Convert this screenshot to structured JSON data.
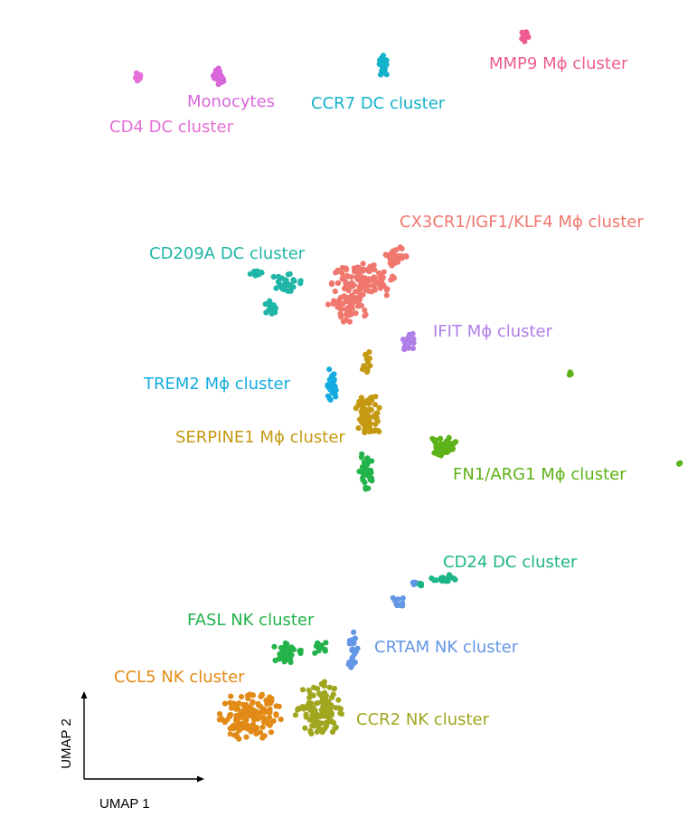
{
  "chart_data": {
    "type": "scatter",
    "title": "",
    "xlabel": "UMAP  1",
    "ylabel": "UMAP  2",
    "grid": false,
    "legend": "none",
    "clusters": [
      {
        "name": "CD4 DC cluster",
        "color": "#E46FD6"
      },
      {
        "name": "Monocytes",
        "color": "#D966DB"
      },
      {
        "name": "CCR7 DC cluster",
        "color": "#14B2CB"
      },
      {
        "name": "MMP9 Mϕ cluster",
        "color": "#EE5C91"
      },
      {
        "name": "CX3CR1/IGF1/KLF4 Mϕ cluster",
        "color": "#F0776E"
      },
      {
        "name": "CD209A DC cluster",
        "color": "#1FB6A6"
      },
      {
        "name": "IFIT Mϕ cluster",
        "color": "#B07EE8"
      },
      {
        "name": "TREM2 Mϕ cluster",
        "color": "#14ACE0"
      },
      {
        "name": "SERPINE1 Mϕ cluster",
        "color": "#C59A12"
      },
      {
        "name": "FN1/ARG1 Mϕ cluster",
        "color": "#5DB217"
      },
      {
        "name": "CD24 DC cluster",
        "color": "#1DB686"
      },
      {
        "name": "FASL NK cluster",
        "color": "#22B34A"
      },
      {
        "name": "CRTAM NK cluster",
        "color": "#6496E6"
      },
      {
        "name": "CCL5 NK cluster",
        "color": "#E28A16"
      },
      {
        "name": "CCR2 NK cluster",
        "color": "#A0A71F"
      }
    ]
  }
}
